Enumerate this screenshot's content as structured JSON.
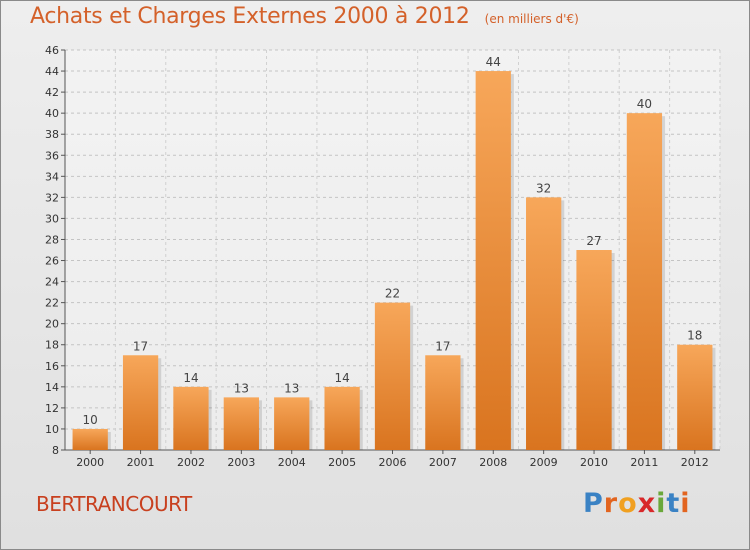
{
  "header": {
    "title": "Achats et Charges Externes 2000 à 2012",
    "subtitle": "(en milliers d'€)"
  },
  "footer": {
    "commune": "BERTRANCOURT",
    "logo_letters": [
      "P",
      "r",
      "o",
      "x",
      "i",
      "t",
      "i"
    ]
  },
  "colors": {
    "bar_top": "#f7a75a",
    "bar_bottom": "#d9741f",
    "title": "#d4612a",
    "logo": [
      "#3a82c4",
      "#e2641f",
      "#f0a020",
      "#d8282a",
      "#6aa83a",
      "#3a82c4",
      "#e2641f"
    ]
  },
  "chart_data": {
    "type": "bar",
    "title": "Achats et Charges Externes 2000 à 2012",
    "subtitle": "(en milliers d'€)",
    "categories": [
      "2000",
      "2001",
      "2002",
      "2003",
      "2004",
      "2005",
      "2006",
      "2007",
      "2008",
      "2009",
      "2010",
      "2011",
      "2012"
    ],
    "values": [
      10,
      17,
      14,
      13,
      13,
      14,
      22,
      17,
      44,
      32,
      27,
      40,
      18
    ],
    "ylim": [
      8,
      46
    ],
    "yticks": [
      8,
      10,
      12,
      14,
      16,
      18,
      20,
      22,
      24,
      26,
      28,
      30,
      32,
      34,
      36,
      38,
      40,
      42,
      44,
      46
    ],
    "grid": true,
    "xlabel": "",
    "ylabel": ""
  }
}
